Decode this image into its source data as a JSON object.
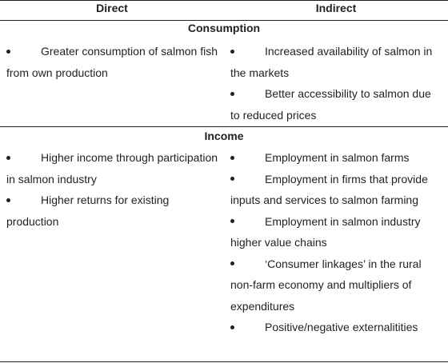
{
  "header": {
    "direct": "Direct",
    "indirect": "Indirect"
  },
  "sections": [
    {
      "title": "Consumption",
      "direct": [
        "Greater consumption of salmon fish from own production"
      ],
      "indirect": [
        "Increased availability of salmon in the markets",
        "Better accessibility to salmon due to reduced prices"
      ]
    },
    {
      "title": "Income",
      "direct": [
        "Higher income through participation in salmon industry",
        "Higher returns for existing production"
      ],
      "indirect": [
        "Employment in salmon farms",
        "Employment in firms that provide inputs and services to salmon farming",
        "Employment in salmon industry higher value chains",
        "‘Consumer linkages’ in the rural non-farm economy and multipliers of expenditures",
        "Positive/negative externalitities"
      ]
    }
  ]
}
